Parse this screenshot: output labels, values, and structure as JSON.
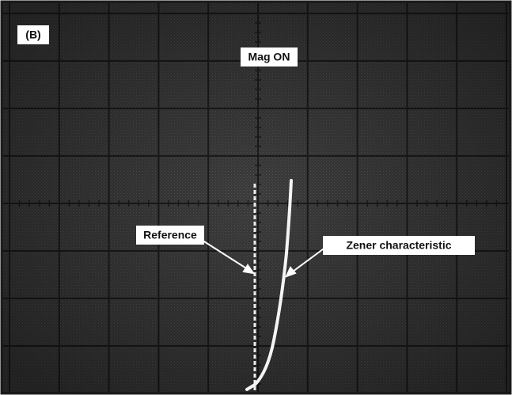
{
  "panel_label": "(B)",
  "mode_label": "Mag ON",
  "annotations": {
    "reference": "Reference",
    "zener": "Zener characteristic"
  }
}
